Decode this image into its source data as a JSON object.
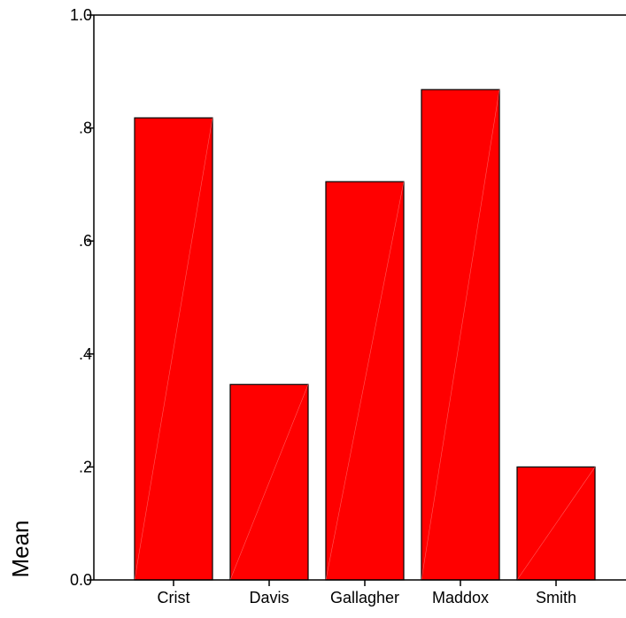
{
  "chart_data": {
    "type": "bar",
    "title": "",
    "xlabel": "",
    "ylabel": "Mean",
    "categories": [
      "Crist",
      "Davis",
      "Gallagher",
      "Maddox",
      "Smith"
    ],
    "values": [
      0.818,
      0.346,
      0.705,
      0.868,
      0.2
    ],
    "ylim": [
      0,
      1
    ],
    "yticks": [
      0,
      0.2,
      0.4,
      0.6,
      0.8,
      1.0
    ],
    "ytick_labels": [
      "0.0",
      ".2",
      ".4",
      ".6",
      ".8",
      "1.0"
    ],
    "bar_color": "#ff0000",
    "bar_edge_color": "#000000",
    "grid": false,
    "legend": "none"
  }
}
